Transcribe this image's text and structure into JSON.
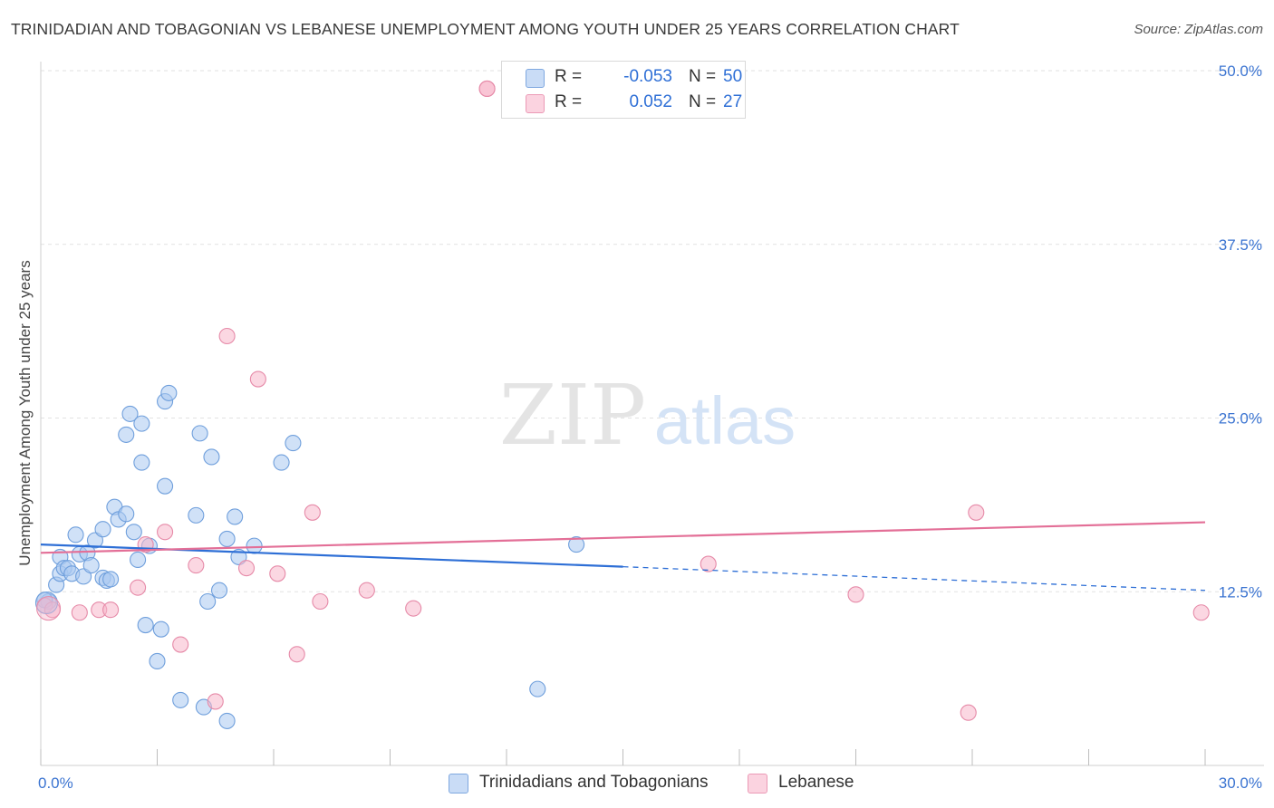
{
  "title": "TRINIDADIAN AND TOBAGONIAN VS LEBANESE UNEMPLOYMENT AMONG YOUTH UNDER 25 YEARS CORRELATION CHART",
  "source": "Source: ZipAtlas.com",
  "watermark": {
    "zip": "ZIP",
    "atlas": "atlas"
  },
  "legend": {
    "rows": [
      {
        "r_label": "R =",
        "r_value": "-0.053",
        "n_label": "N =",
        "n_value": "50",
        "color": "#aac8f0"
      },
      {
        "r_label": "R =",
        "r_value": "0.052",
        "n_label": "N =",
        "n_value": "27",
        "color": "#f7b6cb"
      }
    ]
  },
  "bottom_legend": [
    {
      "label": "Trinidadians and Tobagonians",
      "color": "#aac8f0"
    },
    {
      "label": "Lebanese",
      "color": "#f7b6cb"
    }
  ],
  "chart_data": {
    "type": "scatter",
    "title": "TRINIDADIAN AND TOBAGONIAN VS LEBANESE UNEMPLOYMENT AMONG YOUTH UNDER 25 YEARS CORRELATION CHART",
    "xlabel": "",
    "ylabel": "Unemployment Among Youth under 25 years",
    "xlim": [
      0,
      30
    ],
    "ylim": [
      0,
      50
    ],
    "x_tick_labels": [
      {
        "value": 0,
        "label": "0.0%"
      },
      {
        "value": 30,
        "label": "30.0%"
      }
    ],
    "y_tick_labels": [
      {
        "value": 12.5,
        "label": "12.5%"
      },
      {
        "value": 25,
        "label": "25.0%"
      },
      {
        "value": 37.5,
        "label": "37.5%"
      },
      {
        "value": 50,
        "label": "50.0%"
      }
    ],
    "series": [
      {
        "name": "Trinidadians and Tobagonians",
        "color": "#aac8f0",
        "stroke": "#6f9fdc",
        "line_color": "#2e6fd6",
        "trend": {
          "x0": 0,
          "y0": 15.9,
          "x1": 15,
          "y1": 14.3,
          "dash_to_x": 30,
          "dash_to_y": 12.6
        },
        "points": [
          [
            0.2,
            11.8
          ],
          [
            0.4,
            13.0
          ],
          [
            0.5,
            13.8
          ],
          [
            0.5,
            15.0
          ],
          [
            0.6,
            14.2
          ],
          [
            0.7,
            14.2
          ],
          [
            0.8,
            13.8
          ],
          [
            0.9,
            16.6
          ],
          [
            1.0,
            15.2
          ],
          [
            1.1,
            13.6
          ],
          [
            1.2,
            15.3
          ],
          [
            1.3,
            14.4
          ],
          [
            1.4,
            16.2
          ],
          [
            1.6,
            13.5
          ],
          [
            1.6,
            17.0
          ],
          [
            1.7,
            13.3
          ],
          [
            1.8,
            13.4
          ],
          [
            1.9,
            18.6
          ],
          [
            2.0,
            17.7
          ],
          [
            2.2,
            18.1
          ],
          [
            2.2,
            23.8
          ],
          [
            2.3,
            25.3
          ],
          [
            2.4,
            16.8
          ],
          [
            2.5,
            14.8
          ],
          [
            2.6,
            21.8
          ],
          [
            2.6,
            24.6
          ],
          [
            2.7,
            10.1
          ],
          [
            2.8,
            15.8
          ],
          [
            3.0,
            7.5
          ],
          [
            3.1,
            9.8
          ],
          [
            3.2,
            20.1
          ],
          [
            3.2,
            26.2
          ],
          [
            3.3,
            26.8
          ],
          [
            3.6,
            4.7
          ],
          [
            4.0,
            18.0
          ],
          [
            4.1,
            23.9
          ],
          [
            4.2,
            4.2
          ],
          [
            4.3,
            11.8
          ],
          [
            4.4,
            22.2
          ],
          [
            4.6,
            12.6
          ],
          [
            4.8,
            3.2
          ],
          [
            4.8,
            16.3
          ],
          [
            5.0,
            17.9
          ],
          [
            5.1,
            15.0
          ],
          [
            5.5,
            15.8
          ],
          [
            6.2,
            21.8
          ],
          [
            6.5,
            23.2
          ],
          [
            12.8,
            5.5
          ],
          [
            13.8,
            15.9
          ],
          [
            0.1,
            11.9
          ]
        ]
      },
      {
        "name": "Lebanese",
        "color": "#f7b6cb",
        "stroke": "#e68aa8",
        "line_color": "#e36f97",
        "trend": {
          "x0": 0,
          "y0": 15.3,
          "x1": 30,
          "y1": 17.5
        },
        "points": [
          [
            0.1,
            11.5
          ],
          [
            0.3,
            11.2
          ],
          [
            1.0,
            11.0
          ],
          [
            1.5,
            11.2
          ],
          [
            1.8,
            11.2
          ],
          [
            2.5,
            12.8
          ],
          [
            2.7,
            15.9
          ],
          [
            3.2,
            16.8
          ],
          [
            3.6,
            8.7
          ],
          [
            4.0,
            14.4
          ],
          [
            4.5,
            4.6
          ],
          [
            4.8,
            30.9
          ],
          [
            5.3,
            14.2
          ],
          [
            5.6,
            27.8
          ],
          [
            6.1,
            13.8
          ],
          [
            6.6,
            8.0
          ],
          [
            7.0,
            18.2
          ],
          [
            7.2,
            11.8
          ],
          [
            8.4,
            12.6
          ],
          [
            9.6,
            11.3
          ],
          [
            11.5,
            48.7
          ],
          [
            11.5,
            48.7
          ],
          [
            17.2,
            14.5
          ],
          [
            21.0,
            12.3
          ],
          [
            23.9,
            3.8
          ],
          [
            24.1,
            18.2
          ],
          [
            29.9,
            11.0
          ]
        ]
      }
    ]
  }
}
